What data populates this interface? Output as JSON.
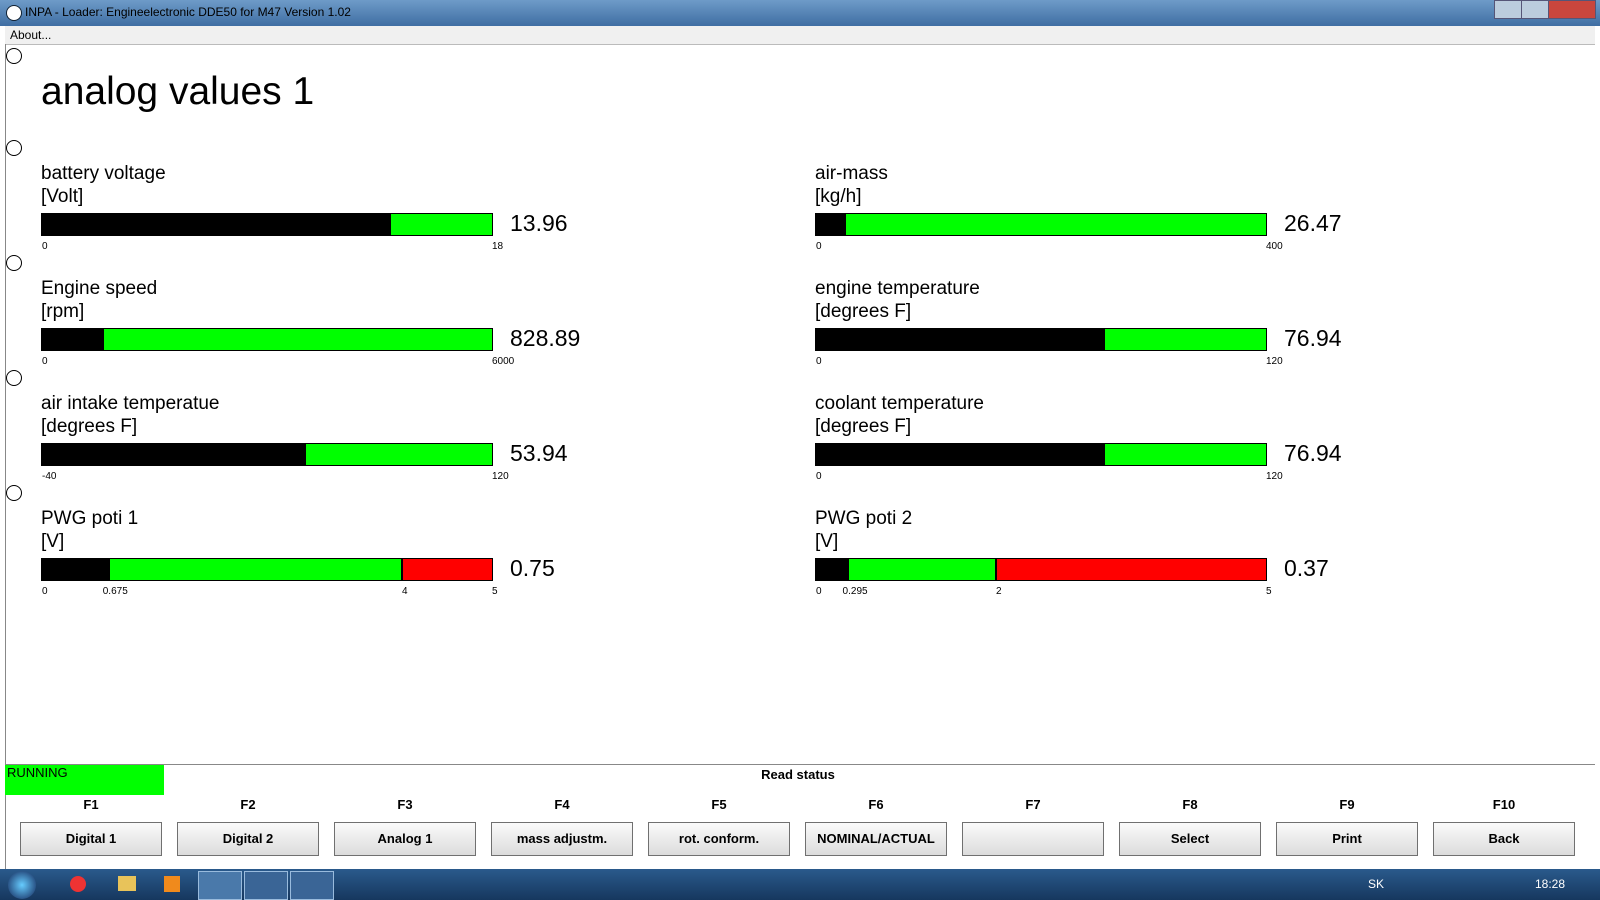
{
  "window": {
    "title": "INPA - Loader:  Engineelectronic DDE50 for M47 Version 1.02",
    "menu": [
      "About..."
    ]
  },
  "page": {
    "title": "analog values 1"
  },
  "gauges": [
    {
      "label": "battery voltage",
      "unit": "[Volt]",
      "min": 0,
      "max": 18,
      "value": 13.96
    },
    {
      "label": "air-mass",
      "unit": "[kg/h]",
      "min": 0,
      "max": 400,
      "value": 26.47
    },
    {
      "label": "Engine speed",
      "unit": "[rpm]",
      "min": 0,
      "max": 6000,
      "value": 828.89
    },
    {
      "label": "engine temperature",
      "unit": "[degrees F]",
      "min": 0,
      "max": 120,
      "value": 76.94
    },
    {
      "label": "air intake temperatue",
      "unit": "[degrees F]",
      "min": -40,
      "max": 120,
      "value": 53.94
    },
    {
      "label": "coolant temperature",
      "unit": "[degrees F]",
      "min": 0,
      "max": 120,
      "value": 76.94
    },
    {
      "label": "PWG poti 1",
      "unit": "[V]",
      "min": 0,
      "max": 5,
      "value": 0.75,
      "ticks": [
        0.675,
        4
      ],
      "red_from": 4
    },
    {
      "label": "PWG poti 2",
      "unit": "[V]",
      "min": 0,
      "max": 5,
      "value": 0.37,
      "ticks": [
        0.295,
        2
      ],
      "red_from": 2
    }
  ],
  "status": {
    "state": "RUNNING",
    "label": "Read status"
  },
  "keys": [
    {
      "key": "F1",
      "label": "Digital 1"
    },
    {
      "key": "F2",
      "label": "Digital 2"
    },
    {
      "key": "F3",
      "label": "Analog 1"
    },
    {
      "key": "F4",
      "label": "mass adjustm."
    },
    {
      "key": "F5",
      "label": "rot. conform."
    },
    {
      "key": "F6",
      "label": "NOMINAL/ACTUAL"
    },
    {
      "key": "F7"
    },
    {
      "key": "F8",
      "label": "Select"
    },
    {
      "key": "F9",
      "label": "Print"
    },
    {
      "key": "F10",
      "label": "Back"
    }
  ],
  "taskbar": {
    "language": "SK",
    "clock": "18:28"
  }
}
